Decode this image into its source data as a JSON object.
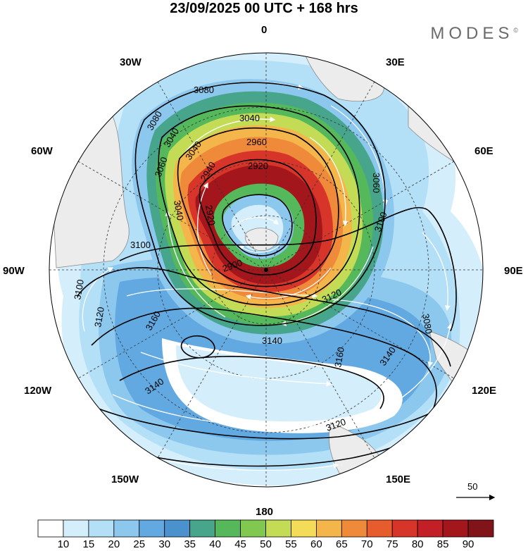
{
  "title": "23/09/2025  00 UTC  + 168 hrs",
  "brand": "MODES",
  "brand_mark": "©",
  "longitude_labels": {
    "lon_0": "0",
    "lon_30e": "30E",
    "lon_60e": "60E",
    "lon_90e": "90E",
    "lon_120e": "120E",
    "lon_150e": "150E",
    "lon_180": "180",
    "lon_150w": "150W",
    "lon_120w": "120W",
    "lon_90w": "90W",
    "lon_60w": "60W",
    "lon_30w": "30W"
  },
  "contour_labels": [
    "3080",
    "3080",
    "3040",
    "3040",
    "2960",
    "3040",
    "3060",
    "2920",
    "2940",
    "3040",
    "3060",
    "2920",
    "2900",
    "3100",
    "3100",
    "3120",
    "3160",
    "3140",
    "3160",
    "3140",
    "3140",
    "3120",
    "3120",
    "3100",
    "3080"
  ],
  "reference_vector": {
    "label": "50"
  },
  "colorbar": {
    "ticks": [
      "10",
      "15",
      "20",
      "25",
      "30",
      "35",
      "40",
      "45",
      "50",
      "55",
      "60",
      "65",
      "70",
      "75",
      "80",
      "85",
      "90"
    ],
    "colors": [
      "#ffffff",
      "#d5eefb",
      "#b3dff7",
      "#8cc7ee",
      "#62a9e2",
      "#4b91cd",
      "#46a58b",
      "#55b85a",
      "#80c850",
      "#c4dc55",
      "#f5dc58",
      "#f4b64a",
      "#ef8a3a",
      "#e65c2c",
      "#d8352a",
      "#c22026",
      "#a3161c",
      "#801418"
    ]
  }
}
